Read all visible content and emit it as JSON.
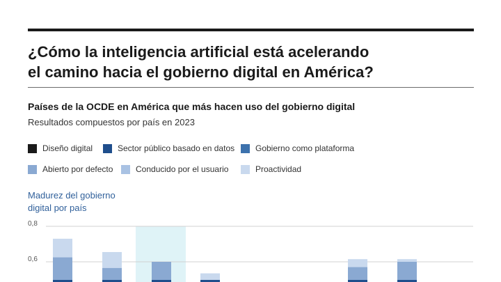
{
  "title": "¿Cómo la inteligencia artificial está acelerando el camino hacia el gobierno digital en América?",
  "title_lines": [
    "¿Cómo la inteligencia artificial está acelerando",
    "el camino hacia el gobierno digital en América?"
  ],
  "subtitle": "Países de la OCDE en América que más hacen uso del gobierno digital",
  "subnote": "Resultados compuestos por país en 2023",
  "colors": {
    "diseno": "#1a1a1a",
    "sector": "#1f4e8c",
    "plataforma": "#3d72ad",
    "abierto": "#8aa9d2",
    "usuario": "#a9c2e3",
    "proactividad": "#c9d9ee",
    "highlight": "#dff3f7"
  },
  "legend": [
    {
      "label": "Diseño digital",
      "color": "#1a1a1a"
    },
    {
      "label": "Sector público basado en datos",
      "color": "#1f4e8c"
    },
    {
      "label": "Gobierno como plataforma",
      "color": "#3d72ad"
    },
    {
      "label": "Abierto por defecto",
      "color": "#8aa9d2"
    },
    {
      "label": "Conducido por el usuario",
      "color": "#a9c2e3"
    },
    {
      "label": "Proactividad",
      "color": "#c9d9ee"
    }
  ],
  "chart_data": {
    "type": "bar",
    "stacked": true,
    "ylabel": "Madurez del gobierno digital por país",
    "y_ticks": [
      "0,8",
      "0,6"
    ],
    "y_tick_values": [
      0.8,
      0.6
    ],
    "grid": true,
    "highlighted_bar_index": 2,
    "series_order": [
      "Abierto por defecto",
      "Proactividad"
    ],
    "bars": [
      {
        "segment_tops": [
          0.6,
          0.625,
          0.73
        ]
      },
      {
        "segment_tops": [
          0.6,
          0.565,
          0.655
        ]
      },
      {
        "segment_tops": [
          0.6,
          0.6
        ]
      },
      {
        "segment_tops": [
          0.535
        ]
      },
      {
        "segment_tops": []
      },
      {
        "segment_tops": []
      },
      {
        "segment_tops": [
          0.6,
          0.57,
          0.615
        ]
      },
      {
        "segment_tops": [
          0.6,
          0.6,
          0.615
        ]
      }
    ]
  }
}
